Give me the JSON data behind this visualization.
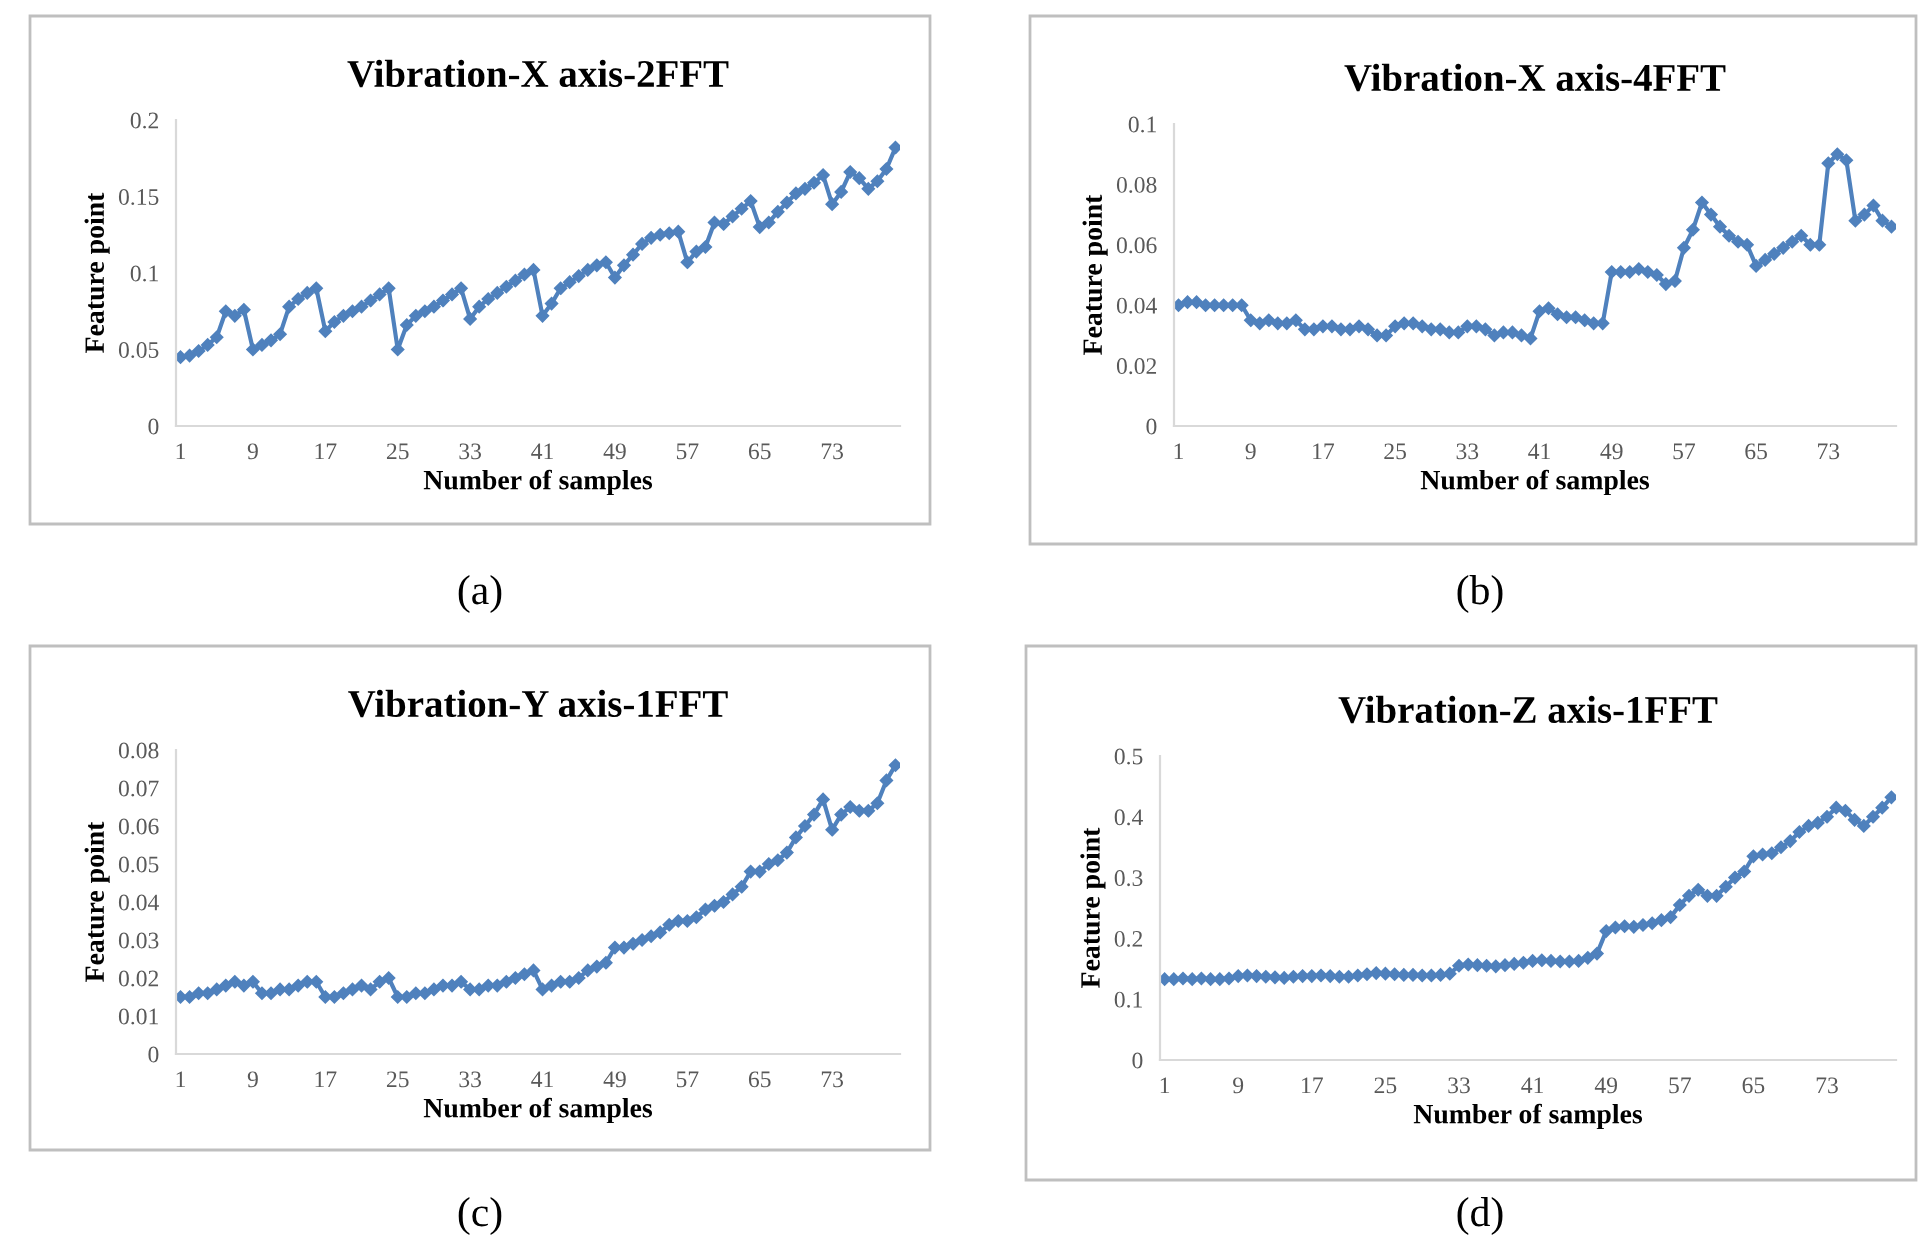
{
  "chart_data": [
    {
      "type": "line",
      "title": "Vibration-X axis-2FFT",
      "xlabel": "Number of samples",
      "ylabel": "Feature point",
      "annotations": [
        "(a)"
      ],
      "categories": [
        "1",
        null,
        null,
        null,
        null,
        null,
        null,
        null,
        "9",
        null,
        null,
        null,
        null,
        null,
        null,
        null,
        "17",
        null,
        null,
        null,
        null,
        null,
        null,
        null,
        "25",
        null,
        null,
        null,
        null,
        null,
        null,
        null,
        "33",
        null,
        null,
        null,
        null,
        null,
        null,
        null,
        "41",
        null,
        null,
        null,
        null,
        null,
        null,
        null,
        "49",
        null,
        null,
        null,
        null,
        null,
        null,
        null,
        "57",
        null,
        null,
        null,
        null,
        null,
        null,
        null,
        "65",
        null,
        null,
        null,
        null,
        null,
        null,
        null,
        "73",
        null,
        null,
        null,
        null,
        null,
        null,
        null
      ],
      "series": [
        {
          "color": "#4f81bd",
          "values": [
            0.045,
            0.046,
            0.049,
            0.053,
            0.058,
            0.075,
            0.072,
            0.076,
            0.05,
            0.053,
            0.056,
            0.06,
            0.078,
            0.083,
            0.087,
            0.09,
            0.062,
            0.068,
            0.072,
            0.075,
            0.078,
            0.082,
            0.086,
            0.09,
            0.05,
            0.066,
            0.072,
            0.075,
            0.078,
            0.082,
            0.086,
            0.09,
            0.07,
            0.078,
            0.083,
            0.087,
            0.091,
            0.095,
            0.099,
            0.102,
            0.072,
            0.08,
            0.09,
            0.094,
            0.098,
            0.102,
            0.105,
            0.107,
            0.097,
            0.105,
            0.112,
            0.119,
            0.123,
            0.125,
            0.126,
            0.127,
            0.107,
            0.114,
            0.117,
            0.133,
            0.132,
            0.137,
            0.142,
            0.147,
            0.13,
            0.133,
            0.14,
            0.146,
            0.152,
            0.155,
            0.159,
            0.164,
            0.145,
            0.153,
            0.166,
            0.162,
            0.155,
            0.16,
            0.168,
            0.182
          ]
        }
      ],
      "ylim": [
        0,
        0.2
      ],
      "yticks": [
        0,
        0.05,
        0.1,
        0.15,
        0.2
      ],
      "grid": false,
      "legend": false,
      "marker": "diamond",
      "line_style": "solid"
    },
    {
      "type": "line",
      "title": "Vibration-X axis-4FFT",
      "xlabel": "Number of samples",
      "ylabel": "Feature point",
      "annotations": [
        "(b)"
      ],
      "categories": [
        "1",
        null,
        null,
        null,
        null,
        null,
        null,
        null,
        "9",
        null,
        null,
        null,
        null,
        null,
        null,
        null,
        "17",
        null,
        null,
        null,
        null,
        null,
        null,
        null,
        "25",
        null,
        null,
        null,
        null,
        null,
        null,
        null,
        "33",
        null,
        null,
        null,
        null,
        null,
        null,
        null,
        "41",
        null,
        null,
        null,
        null,
        null,
        null,
        null,
        "49",
        null,
        null,
        null,
        null,
        null,
        null,
        null,
        "57",
        null,
        null,
        null,
        null,
        null,
        null,
        null,
        "65",
        null,
        null,
        null,
        null,
        null,
        null,
        null,
        "73",
        null,
        null,
        null,
        null,
        null,
        null,
        null
      ],
      "series": [
        {
          "color": "#4f81bd",
          "values": [
            0.04,
            0.041,
            0.041,
            0.04,
            0.04,
            0.04,
            0.04,
            0.04,
            0.035,
            0.034,
            0.035,
            0.034,
            0.034,
            0.035,
            0.032,
            0.032,
            0.033,
            0.033,
            0.032,
            0.032,
            0.033,
            0.032,
            0.03,
            0.03,
            0.033,
            0.034,
            0.034,
            0.033,
            0.032,
            0.032,
            0.031,
            0.031,
            0.033,
            0.033,
            0.032,
            0.03,
            0.031,
            0.031,
            0.03,
            0.029,
            0.038,
            0.039,
            0.037,
            0.036,
            0.036,
            0.035,
            0.034,
            0.034,
            0.051,
            0.051,
            0.051,
            0.052,
            0.051,
            0.05,
            0.047,
            0.048,
            0.059,
            0.065,
            0.074,
            0.07,
            0.066,
            0.063,
            0.061,
            0.06,
            0.053,
            0.055,
            0.057,
            0.059,
            0.061,
            0.063,
            0.06,
            0.06,
            0.087,
            0.09,
            0.088,
            0.068,
            0.07,
            0.073,
            0.068,
            0.066
          ]
        }
      ],
      "ylim": [
        0,
        0.1
      ],
      "yticks": [
        0,
        0.02,
        0.04,
        0.06,
        0.08,
        0.1
      ],
      "grid": false,
      "legend": false,
      "marker": "diamond",
      "line_style": "solid"
    },
    {
      "type": "line",
      "title": "Vibration-Y axis-1FFT",
      "xlabel": "Number of samples",
      "ylabel": "Feature point",
      "annotations": [
        "(c)"
      ],
      "categories": [
        "1",
        null,
        null,
        null,
        null,
        null,
        null,
        null,
        "9",
        null,
        null,
        null,
        null,
        null,
        null,
        null,
        "17",
        null,
        null,
        null,
        null,
        null,
        null,
        null,
        "25",
        null,
        null,
        null,
        null,
        null,
        null,
        null,
        "33",
        null,
        null,
        null,
        null,
        null,
        null,
        null,
        "41",
        null,
        null,
        null,
        null,
        null,
        null,
        null,
        "49",
        null,
        null,
        null,
        null,
        null,
        null,
        null,
        "57",
        null,
        null,
        null,
        null,
        null,
        null,
        null,
        "65",
        null,
        null,
        null,
        null,
        null,
        null,
        null,
        "73",
        null,
        null,
        null,
        null,
        null,
        null,
        null
      ],
      "series": [
        {
          "color": "#4f81bd",
          "values": [
            0.015,
            0.015,
            0.016,
            0.016,
            0.017,
            0.018,
            0.019,
            0.018,
            0.019,
            0.016,
            0.016,
            0.017,
            0.017,
            0.018,
            0.019,
            0.019,
            0.015,
            0.015,
            0.016,
            0.017,
            0.018,
            0.017,
            0.019,
            0.02,
            0.015,
            0.015,
            0.016,
            0.016,
            0.017,
            0.018,
            0.018,
            0.019,
            0.017,
            0.017,
            0.018,
            0.018,
            0.019,
            0.02,
            0.021,
            0.022,
            0.017,
            0.018,
            0.019,
            0.019,
            0.02,
            0.022,
            0.023,
            0.024,
            0.028,
            0.028,
            0.029,
            0.03,
            0.031,
            0.032,
            0.034,
            0.035,
            0.035,
            0.036,
            0.038,
            0.039,
            0.04,
            0.042,
            0.044,
            0.048,
            0.048,
            0.05,
            0.051,
            0.053,
            0.057,
            0.06,
            0.063,
            0.067,
            0.059,
            0.063,
            0.065,
            0.064,
            0.064,
            0.066,
            0.072,
            0.076
          ]
        }
      ],
      "ylim": [
        0,
        0.08
      ],
      "yticks": [
        0,
        0.01,
        0.02,
        0.03,
        0.04,
        0.05,
        0.06,
        0.07,
        0.08
      ],
      "grid": false,
      "legend": false,
      "marker": "diamond",
      "line_style": "solid"
    },
    {
      "type": "line",
      "title": "Vibration-Z axis-1FFT",
      "xlabel": "Number of samples",
      "ylabel": "Feature point",
      "annotations": [
        "(d)"
      ],
      "categories": [
        "1",
        null,
        null,
        null,
        null,
        null,
        null,
        null,
        "9",
        null,
        null,
        null,
        null,
        null,
        null,
        null,
        "17",
        null,
        null,
        null,
        null,
        null,
        null,
        null,
        "25",
        null,
        null,
        null,
        null,
        null,
        null,
        null,
        "33",
        null,
        null,
        null,
        null,
        null,
        null,
        null,
        "41",
        null,
        null,
        null,
        null,
        null,
        null,
        null,
        "49",
        null,
        null,
        null,
        null,
        null,
        null,
        null,
        "57",
        null,
        null,
        null,
        null,
        null,
        null,
        null,
        "65",
        null,
        null,
        null,
        null,
        null,
        null,
        null,
        "73",
        null,
        null,
        null,
        null,
        null,
        null,
        null
      ],
      "series": [
        {
          "color": "#4f81bd",
          "values": [
            0.133,
            0.133,
            0.134,
            0.133,
            0.134,
            0.133,
            0.133,
            0.134,
            0.138,
            0.139,
            0.138,
            0.137,
            0.136,
            0.135,
            0.137,
            0.138,
            0.138,
            0.139,
            0.138,
            0.137,
            0.137,
            0.139,
            0.141,
            0.143,
            0.142,
            0.141,
            0.14,
            0.14,
            0.139,
            0.139,
            0.14,
            0.142,
            0.155,
            0.157,
            0.156,
            0.155,
            0.154,
            0.156,
            0.158,
            0.16,
            0.163,
            0.164,
            0.163,
            0.162,
            0.162,
            0.163,
            0.168,
            0.175,
            0.212,
            0.218,
            0.22,
            0.219,
            0.222,
            0.225,
            0.23,
            0.235,
            0.255,
            0.27,
            0.28,
            0.27,
            0.27,
            0.285,
            0.3,
            0.31,
            0.335,
            0.338,
            0.34,
            0.35,
            0.36,
            0.375,
            0.385,
            0.39,
            0.4,
            0.415,
            0.41,
            0.395,
            0.385,
            0.4,
            0.415,
            0.432
          ]
        }
      ],
      "ylim": [
        0,
        0.5
      ],
      "yticks": [
        0,
        0.1,
        0.2,
        0.3,
        0.4,
        0.5
      ],
      "grid": false,
      "legend": false,
      "marker": "diamond",
      "line_style": "solid"
    }
  ]
}
